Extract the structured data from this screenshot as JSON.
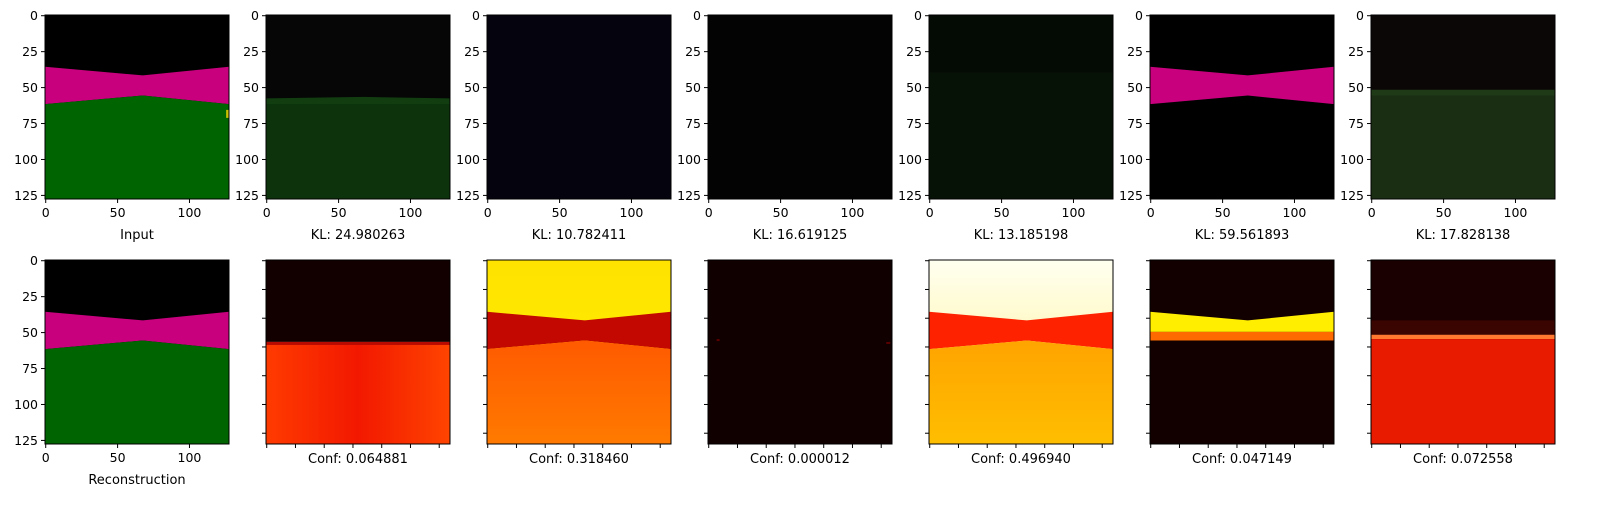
{
  "chart_data": {
    "type": "image-grid",
    "image_size": [
      128,
      128
    ],
    "x_ticks": [
      0,
      50,
      100
    ],
    "y_ticks": [
      0,
      25,
      50,
      75,
      100,
      125
    ],
    "colors": {
      "black": "#000000",
      "magenta": "#c8007e",
      "green": "#006400",
      "dark_green": "#0f3a0f",
      "hot_dark": "#120000",
      "hot_red": "#e82000",
      "hot_orange": "#ff6a00",
      "hot_yellow": "#ffee00",
      "hot_pale": "#ffffd8"
    },
    "panels": [
      {
        "row": 0,
        "col": 0,
        "label": "Input",
        "style": "scene"
      },
      {
        "row": 0,
        "col": 1,
        "label": "KL: 24.980263",
        "style": "dim-green"
      },
      {
        "row": 0,
        "col": 2,
        "label": "KL: 10.782411",
        "style": "near-black-blue"
      },
      {
        "row": 0,
        "col": 3,
        "label": "KL: 16.619125",
        "style": "black"
      },
      {
        "row": 0,
        "col": 4,
        "label": "KL: 13.185198",
        "style": "near-black-green"
      },
      {
        "row": 0,
        "col": 5,
        "label": "KL: 59.561893",
        "style": "band-only"
      },
      {
        "row": 0,
        "col": 6,
        "label": "KL: 17.828138",
        "style": "faint-horizon"
      },
      {
        "row": 1,
        "col": 0,
        "label": "Reconstruction",
        "style": "scene"
      },
      {
        "row": 1,
        "col": 1,
        "label": "Conf: 0.064881",
        "style": "heat-1"
      },
      {
        "row": 1,
        "col": 2,
        "label": "Conf: 0.318460",
        "style": "heat-2"
      },
      {
        "row": 1,
        "col": 3,
        "label": "Conf: 0.000012",
        "style": "heat-3"
      },
      {
        "row": 1,
        "col": 4,
        "label": "Conf: 0.496940",
        "style": "heat-4"
      },
      {
        "row": 1,
        "col": 5,
        "label": "Conf: 0.047149",
        "style": "heat-5"
      },
      {
        "row": 1,
        "col": 6,
        "label": "Conf: 0.072558",
        "style": "heat-6"
      }
    ]
  }
}
